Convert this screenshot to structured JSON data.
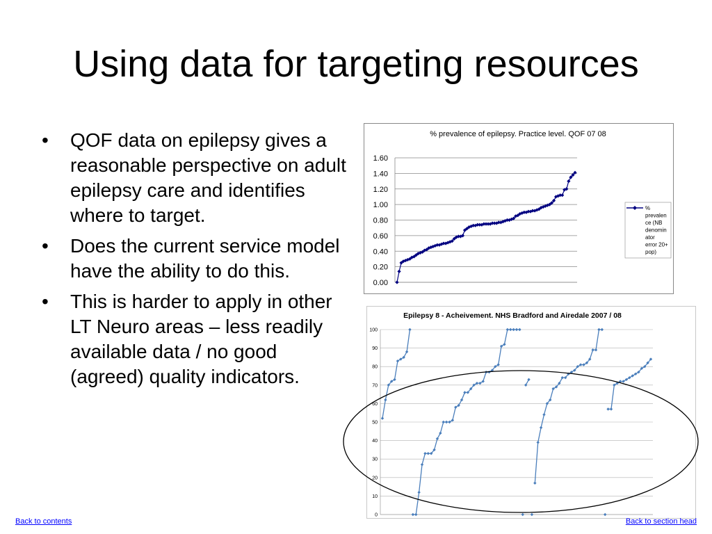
{
  "slide": {
    "title": "Using data for targeting resources",
    "bullets": [
      "QOF data on epilepsy gives a reasonable perspective on adult epilepsy care and identifies where to target.",
      "Does the current service model have the ability to do this.",
      "This is harder to apply in other LT Neuro areas – less readily available data / no good (agreed) quality indicators."
    ]
  },
  "footer": {
    "back_contents": "Back to contents",
    "back_section": "Back to section head"
  },
  "colors": {
    "chart1_series": "#000080",
    "chart2_series": "#4a7ebb",
    "gridline": "#888888",
    "ellipse": "#000000",
    "link": "#0000ff"
  },
  "chart_data": [
    {
      "type": "line",
      "title": "% prevalence of epilepsy. Practice level. QOF 07 08",
      "xlabel": "",
      "ylabel": "",
      "ylim": [
        0,
        1.6
      ],
      "yticks": [
        "0.00",
        "0.20",
        "0.40",
        "0.60",
        "0.80",
        "1.00",
        "1.20",
        "1.40",
        "1.60"
      ],
      "grid": true,
      "marker": "diamond",
      "legend_position": "right",
      "series": [
        {
          "name": "% prevalence (NB denominator error 20+ pop)",
          "values": [
            0.0,
            0.14,
            0.25,
            0.27,
            0.28,
            0.29,
            0.3,
            0.32,
            0.33,
            0.35,
            0.37,
            0.38,
            0.39,
            0.41,
            0.42,
            0.44,
            0.45,
            0.46,
            0.47,
            0.48,
            0.48,
            0.49,
            0.5,
            0.5,
            0.51,
            0.52,
            0.53,
            0.56,
            0.58,
            0.59,
            0.59,
            0.6,
            0.67,
            0.69,
            0.71,
            0.72,
            0.73,
            0.73,
            0.74,
            0.74,
            0.74,
            0.75,
            0.75,
            0.75,
            0.75,
            0.76,
            0.76,
            0.76,
            0.77,
            0.77,
            0.78,
            0.79,
            0.8,
            0.8,
            0.81,
            0.82,
            0.85,
            0.86,
            0.88,
            0.89,
            0.9,
            0.9,
            0.91,
            0.91,
            0.92,
            0.92,
            0.93,
            0.94,
            0.96,
            0.97,
            0.98,
            0.99,
            1.0,
            1.02,
            1.05,
            1.1,
            1.11,
            1.12,
            1.12,
            1.19,
            1.2,
            1.3,
            1.35,
            1.38,
            1.41
          ]
        }
      ]
    },
    {
      "type": "line",
      "title": "Epilepsy 8 - Acheivement. NHS Bradford and Airedale 2007 / 08",
      "xlabel": "",
      "ylabel": "",
      "ylim": [
        0,
        100
      ],
      "yticks": [
        "0",
        "10",
        "20",
        "30",
        "40",
        "50",
        "60",
        "70",
        "80",
        "90",
        "100"
      ],
      "grid": true,
      "marker": "diamond",
      "annotation": "ellipse around the lower-middle band of values",
      "segments": [
        [
          [
            1,
            52
          ],
          [
            2,
            62
          ],
          [
            3,
            70
          ],
          [
            4,
            72
          ],
          [
            5,
            73
          ],
          [
            6,
            83
          ],
          [
            7,
            84
          ],
          [
            8,
            85
          ],
          [
            9,
            88
          ],
          [
            10,
            100
          ]
        ],
        [
          [
            11,
            0
          ],
          [
            12,
            0
          ],
          [
            13,
            12
          ],
          [
            14,
            27
          ],
          [
            15,
            33
          ],
          [
            16,
            33
          ],
          [
            17,
            33
          ],
          [
            18,
            35
          ],
          [
            19,
            41
          ],
          [
            20,
            44
          ],
          [
            21,
            50
          ],
          [
            22,
            50
          ],
          [
            23,
            50
          ],
          [
            24,
            51
          ],
          [
            25,
            58
          ],
          [
            26,
            59
          ],
          [
            27,
            62
          ],
          [
            28,
            66
          ],
          [
            29,
            66
          ],
          [
            30,
            68
          ],
          [
            31,
            70
          ],
          [
            32,
            71
          ],
          [
            33,
            71
          ],
          [
            34,
            72
          ],
          [
            35,
            77
          ],
          [
            36,
            77
          ],
          [
            37,
            78
          ],
          [
            38,
            80
          ],
          [
            39,
            81
          ],
          [
            40,
            91
          ],
          [
            41,
            92
          ],
          [
            42,
            100
          ],
          [
            43,
            100
          ],
          [
            44,
            100
          ],
          [
            45,
            100
          ],
          [
            46,
            100
          ]
        ],
        [
          [
            47,
            0
          ]
        ],
        [
          [
            48,
            70
          ],
          [
            49,
            73
          ]
        ],
        [
          [
            50,
            0
          ]
        ],
        [
          [
            51,
            17
          ],
          [
            52,
            39
          ],
          [
            53,
            47
          ],
          [
            54,
            54
          ],
          [
            55,
            60
          ],
          [
            56,
            62
          ],
          [
            57,
            68
          ],
          [
            58,
            69
          ],
          [
            59,
            71
          ],
          [
            60,
            74
          ],
          [
            61,
            74
          ],
          [
            62,
            76
          ],
          [
            63,
            77
          ],
          [
            64,
            78
          ],
          [
            65,
            80
          ],
          [
            66,
            81
          ],
          [
            67,
            81
          ],
          [
            68,
            82
          ],
          [
            69,
            84
          ],
          [
            70,
            89
          ],
          [
            71,
            89
          ],
          [
            72,
            100
          ],
          [
            73,
            100
          ]
        ],
        [
          [
            74,
            0
          ]
        ],
        [
          [
            75,
            57
          ],
          [
            76,
            57
          ],
          [
            77,
            70
          ],
          [
            78,
            71
          ],
          [
            79,
            72
          ],
          [
            80,
            72
          ],
          [
            81,
            73
          ],
          [
            82,
            74
          ],
          [
            83,
            75
          ],
          [
            84,
            76
          ],
          [
            85,
            77
          ],
          [
            86,
            79
          ],
          [
            87,
            80
          ],
          [
            88,
            82
          ],
          [
            89,
            84
          ]
        ]
      ]
    }
  ]
}
